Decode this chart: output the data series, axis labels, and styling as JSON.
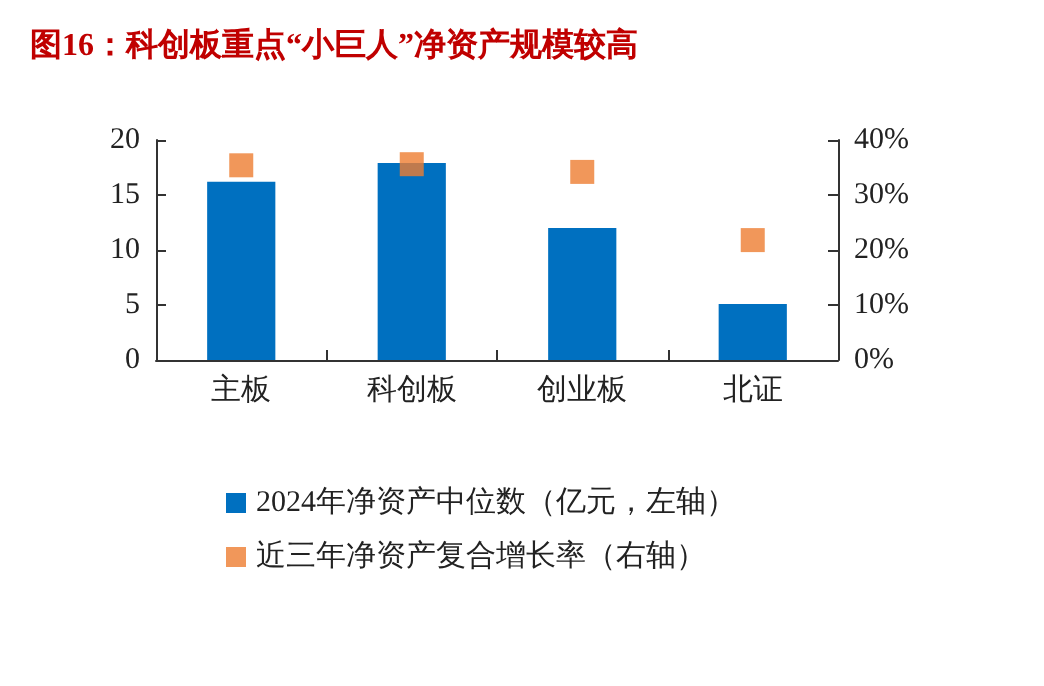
{
  "chart_data": {
    "type": "bar",
    "title": "图16：科创板重点“小巨人”净资产规模较高",
    "categories": [
      "主板",
      "科创板",
      "创业板",
      "北证"
    ],
    "series": [
      {
        "name": "2024年净资产中位数（亿元，左轴）",
        "color": "#0070c0",
        "values": [
          16.2,
          17.9,
          12.0,
          5.1
        ]
      },
      {
        "name": "近三年净资产复合增长率（右轴）",
        "type": "scatter",
        "axis": "y2",
        "color": "#ed7d31",
        "values": [
          35.4,
          35.6,
          34.2,
          21.8
        ]
      }
    ],
    "ylim": [
      0,
      20
    ],
    "yticks": [
      0,
      5,
      10,
      15,
      20
    ],
    "y2lim": [
      0,
      40
    ],
    "y2ticks": [
      {
        "value": 0,
        "label": "0%"
      },
      {
        "value": 10,
        "label": "10%"
      },
      {
        "value": 20,
        "label": "20%"
      },
      {
        "value": 30,
        "label": "30%"
      },
      {
        "value": 40,
        "label": "40%"
      }
    ],
    "marker": "square",
    "legend": "bottom",
    "grid": false
  }
}
